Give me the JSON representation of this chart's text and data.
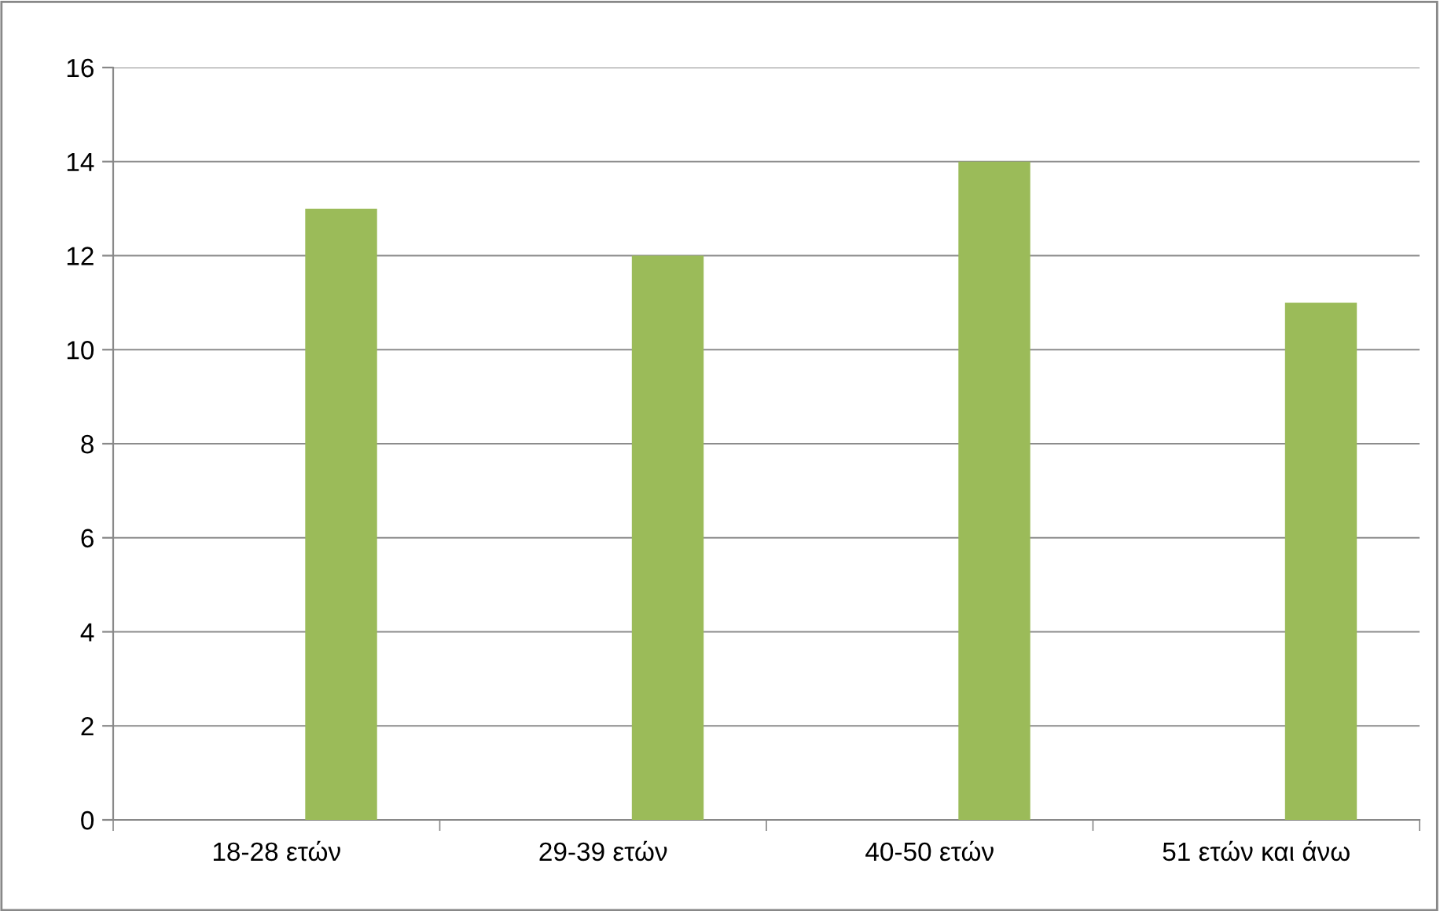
{
  "chart_data": {
    "type": "bar",
    "categories": [
      "18-28 ετών",
      "29-39 ετών",
      "40-50 ετών",
      "51 ετών και άνω"
    ],
    "series": [
      {
        "values": [
          null,
          null,
          null,
          null
        ]
      },
      {
        "color": "#9bbb59",
        "values": [
          13,
          12,
          14,
          11
        ]
      }
    ],
    "ylim": [
      0,
      16
    ],
    "yticks": [
      0,
      2,
      4,
      6,
      8,
      10,
      12,
      14,
      16
    ],
    "grid": "y",
    "legend": false
  }
}
